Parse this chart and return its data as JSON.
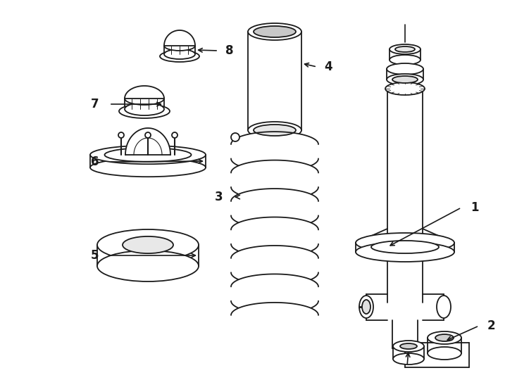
{
  "bg_color": "#ffffff",
  "line_color": "#1a1a1a",
  "line_width": 1.3,
  "fig_width": 7.34,
  "fig_height": 5.4,
  "dpi": 100
}
